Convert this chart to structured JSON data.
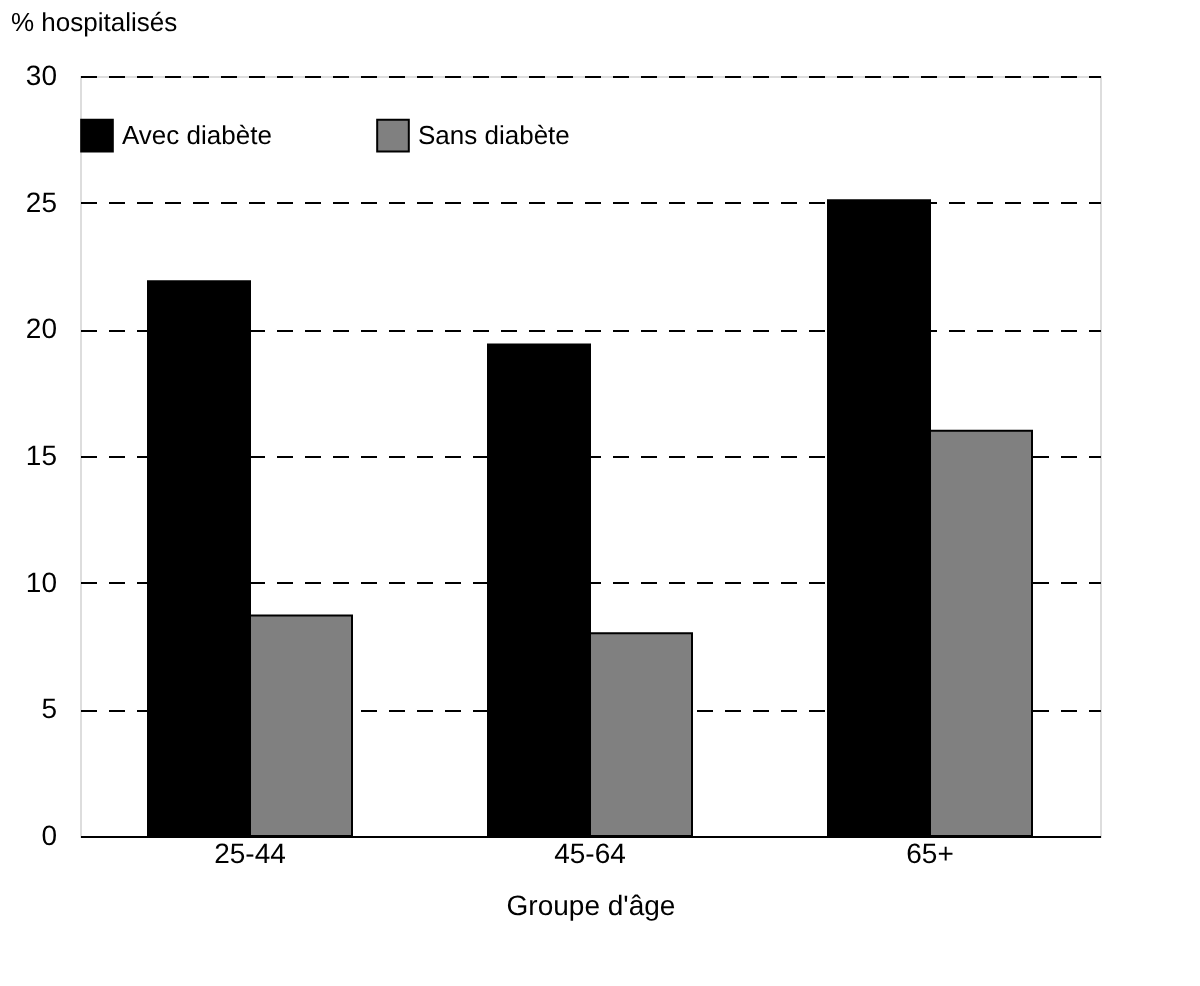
{
  "chart_data": {
    "type": "bar",
    "ylabel": "% hospitalisés",
    "xlabel": "Groupe d'âge",
    "categories": [
      "25-44",
      "45-64",
      "65+"
    ],
    "series": [
      {
        "name": "Avec diabète",
        "color": "#000000",
        "values": [
          21.9,
          19.4,
          25.1
        ]
      },
      {
        "name": "Sans diabète",
        "color": "#808080",
        "values": [
          8.7,
          8.0,
          16.0
        ]
      }
    ],
    "ylim": [
      0,
      30
    ],
    "yticks": [
      0,
      5,
      10,
      15,
      20,
      25,
      30
    ],
    "grid": "y",
    "legend": "top"
  }
}
